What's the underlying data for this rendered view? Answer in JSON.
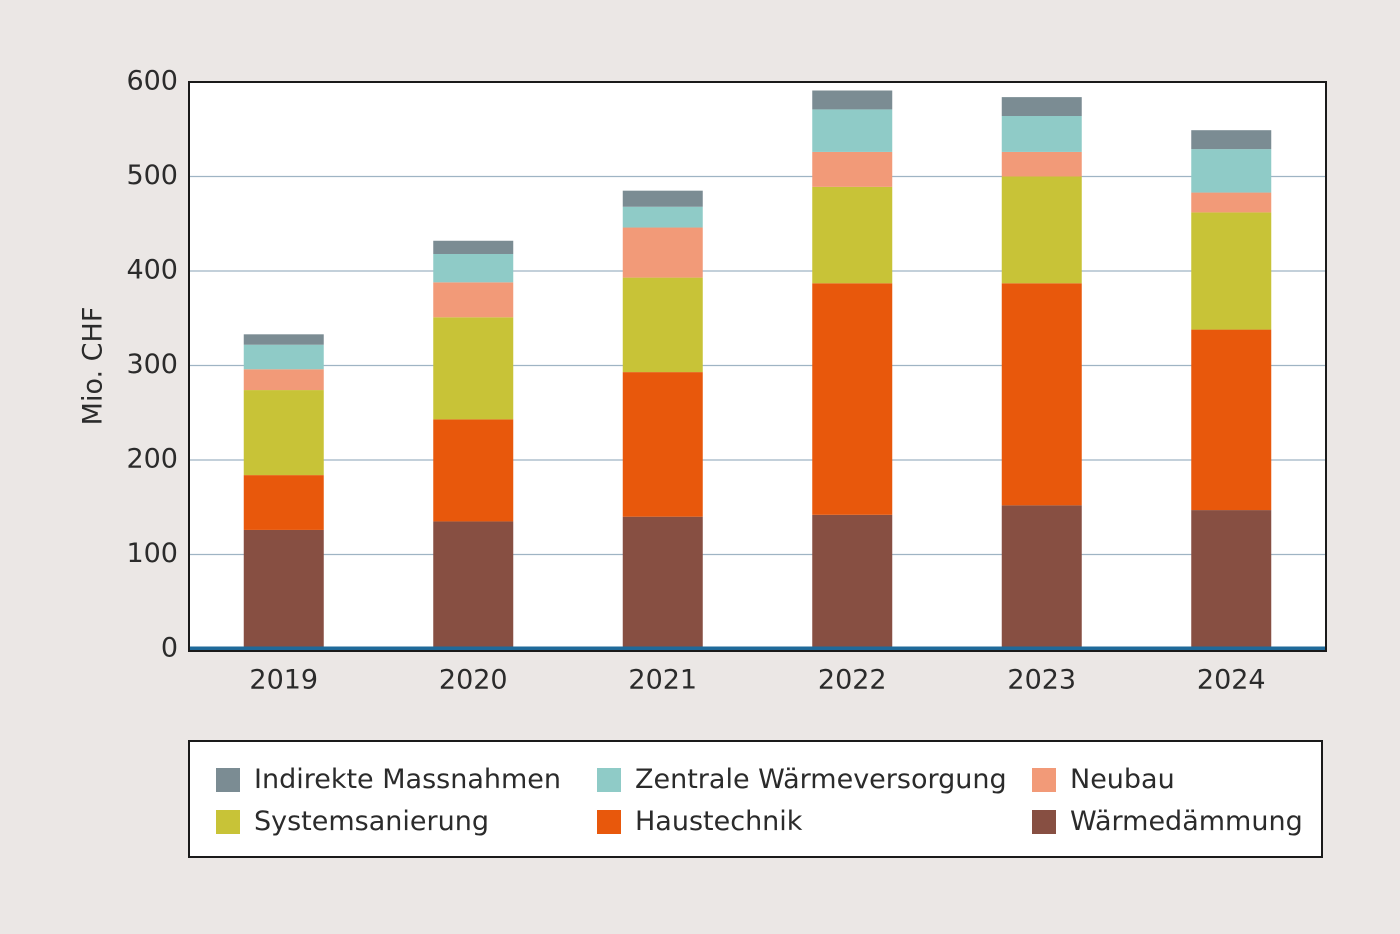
{
  "chart_data": {
    "type": "bar",
    "stacked": true,
    "ylabel": "Mio. CHF",
    "xlabel": "",
    "ylim": [
      0,
      600
    ],
    "yticks": [
      0,
      100,
      200,
      300,
      400,
      500,
      600
    ],
    "grid": true,
    "legend_position": "bottom",
    "categories": [
      "2019",
      "2020",
      "2021",
      "2022",
      "2023",
      "2024"
    ],
    "series": [
      {
        "name": "Wärmedämmung",
        "color": "#874f42",
        "values": [
          126,
          135,
          140,
          142,
          152,
          147
        ]
      },
      {
        "name": "Haustechnik",
        "color": "#e8580c",
        "values": [
          58,
          108,
          153,
          245,
          235,
          191
        ]
      },
      {
        "name": "Systemsanierung",
        "color": "#c8c337",
        "values": [
          90,
          108,
          100,
          102,
          113,
          124
        ]
      },
      {
        "name": "Neubau",
        "color": "#f29a78",
        "values": [
          22,
          37,
          53,
          37,
          26,
          21
        ]
      },
      {
        "name": "Zentrale Wärmeversorgung",
        "color": "#8fcbc7",
        "values": [
          26,
          30,
          22,
          45,
          38,
          46
        ]
      },
      {
        "name": "Indirekte Massnahmen",
        "color": "#7b8c93",
        "values": [
          11,
          14,
          17,
          20,
          20,
          20
        ]
      }
    ]
  },
  "legend_order": [
    "Indirekte Massnahmen",
    "Zentrale Wärmeversorgung",
    "Neubau",
    "Systemsanierung",
    "Haustechnik",
    "Wärmedämmung"
  ]
}
